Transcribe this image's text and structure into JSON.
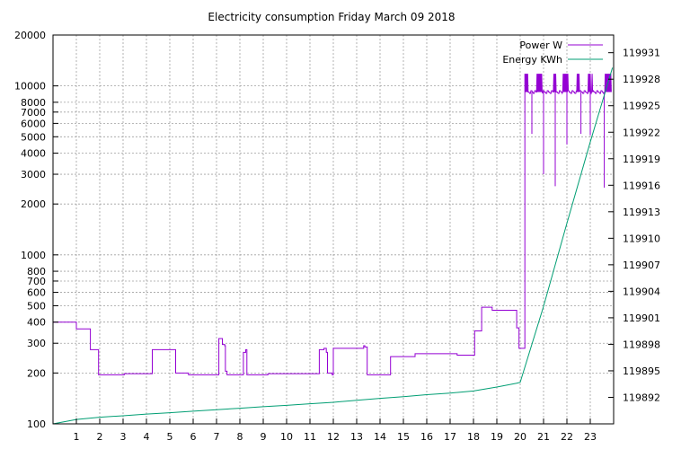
{
  "chart_data": {
    "type": "line",
    "title": "Electricity consumption Friday March 09 2018",
    "xlim": [
      0,
      24
    ],
    "x_ticks": [
      1,
      2,
      3,
      4,
      5,
      6,
      7,
      8,
      9,
      10,
      11,
      12,
      13,
      14,
      15,
      16,
      17,
      18,
      19,
      20,
      21,
      22,
      23
    ],
    "y_left": {
      "scale": "log",
      "lim": [
        100,
        20000
      ],
      "ticks": [
        100,
        200,
        300,
        400,
        500,
        600,
        700,
        800,
        1000,
        2000,
        3000,
        4000,
        5000,
        6000,
        7000,
        8000,
        10000,
        20000
      ]
    },
    "y_right": {
      "scale": "linear",
      "lim": [
        119889,
        119933
      ],
      "ticks": [
        119892,
        119895,
        119898,
        119901,
        119904,
        119907,
        119910,
        119913,
        119916,
        119919,
        119922,
        119925,
        119928,
        119931
      ]
    },
    "grid": true,
    "legend_position": "top-right",
    "series": [
      {
        "name": "Power W",
        "axis": "left",
        "color": "#9400d3",
        "step": true,
        "x": [
          0,
          1.0,
          1.6,
          1.95,
          2.95,
          3.05,
          4.1,
          4.25,
          5.1,
          5.25,
          5.8,
          7.1,
          7.25,
          7.35,
          7.38,
          7.45,
          8.15,
          8.2,
          8.25,
          8.3,
          9.1,
          9.2,
          10.7,
          11.4,
          11.5,
          11.6,
          11.7,
          11.75,
          11.95,
          12.0,
          13.2,
          13.3,
          13.35,
          13.45,
          14.3,
          14.45,
          15.4,
          15.5,
          17.2,
          17.3,
          17.95,
          18.05,
          18.35,
          18.45,
          18.8,
          19.8,
          19.85,
          19.95,
          20.0,
          20.2
        ],
        "values": [
          400,
          365,
          275,
          195,
          195,
          198,
          198,
          275,
          275,
          200,
          195,
          320,
          295,
          290,
          205,
          195,
          265,
          265,
          275,
          195,
          195,
          198,
          198,
          275,
          275,
          280,
          265,
          200,
          195,
          280,
          280,
          290,
          285,
          195,
          195,
          250,
          250,
          260,
          260,
          255,
          255,
          355,
          490,
          490,
          470,
          470,
          370,
          280,
          280,
          9200
        ]
      },
      {
        "name": "Energy KWh",
        "axis": "right",
        "color": "#009e73",
        "x": [
          0,
          1.0,
          2.0,
          3.0,
          4.0,
          5.0,
          6.0,
          7.0,
          8.0,
          9.0,
          10.0,
          11.0,
          12.0,
          13.0,
          14.0,
          15.0,
          16.0,
          17.0,
          18.0,
          19.0,
          19.85,
          20.0,
          21.0,
          22.0,
          23.0,
          23.95
        ],
        "values": [
          119889.0,
          119889.5,
          119889.75,
          119889.92,
          119890.1,
          119890.26,
          119890.43,
          119890.6,
          119890.77,
          119890.94,
          119891.1,
          119891.27,
          119891.44,
          119891.67,
          119891.88,
          119892.08,
          119892.3,
          119892.48,
          119892.72,
          119893.17,
          119893.6,
          119893.7,
          119902.3,
          119911.7,
          119920.9,
          119929.3
        ]
      }
    ]
  }
}
